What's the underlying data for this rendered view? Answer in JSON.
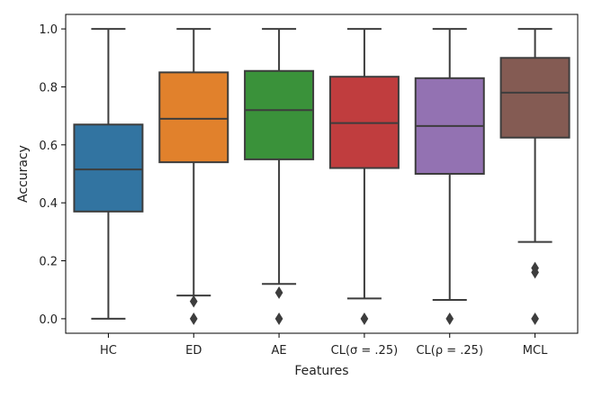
{
  "chart_data": {
    "type": "box",
    "title": "",
    "xlabel": "Features",
    "ylabel": "Accuracy",
    "ylim": [
      -0.05,
      1.05
    ],
    "yticks": [
      0.0,
      0.2,
      0.4,
      0.6,
      0.8,
      1.0
    ],
    "ytick_labels": [
      "0.0",
      "0.2",
      "0.4",
      "0.6",
      "0.8",
      "1.0"
    ],
    "grid": false,
    "legend": "none",
    "categories": [
      "HC",
      "ED",
      "AE",
      "CL(σ = .25)",
      "CL(ρ = .25)",
      "MCL"
    ],
    "boxes": [
      {
        "label": "HC",
        "color": "#3274a1",
        "whisker_low": 0.0,
        "q1": 0.37,
        "median": 0.515,
        "q3": 0.67,
        "whisker_high": 1.0,
        "outliers": []
      },
      {
        "label": "ED",
        "color": "#e1812c",
        "whisker_low": 0.08,
        "q1": 0.54,
        "median": 0.69,
        "q3": 0.85,
        "whisker_high": 1.0,
        "outliers": [
          0.06,
          0.0
        ]
      },
      {
        "label": "AE",
        "color": "#3a923a",
        "whisker_low": 0.12,
        "q1": 0.55,
        "median": 0.72,
        "q3": 0.855,
        "whisker_high": 1.0,
        "outliers": [
          0.09,
          0.0
        ]
      },
      {
        "label": "CL(σ = .25)",
        "color": "#c03d3e",
        "whisker_low": 0.07,
        "q1": 0.52,
        "median": 0.675,
        "q3": 0.835,
        "whisker_high": 1.0,
        "outliers": [
          0.0
        ]
      },
      {
        "label": "CL(ρ = .25)",
        "color": "#9372b2",
        "whisker_low": 0.065,
        "q1": 0.5,
        "median": 0.665,
        "q3": 0.83,
        "whisker_high": 1.0,
        "outliers": [
          0.0
        ]
      },
      {
        "label": "MCL",
        "color": "#845b53",
        "whisker_low": 0.265,
        "q1": 0.625,
        "median": 0.78,
        "q3": 0.9,
        "whisker_high": 1.0,
        "outliers": [
          0.175,
          0.16,
          0.0
        ]
      }
    ],
    "line_color": "#3d3d3d"
  }
}
